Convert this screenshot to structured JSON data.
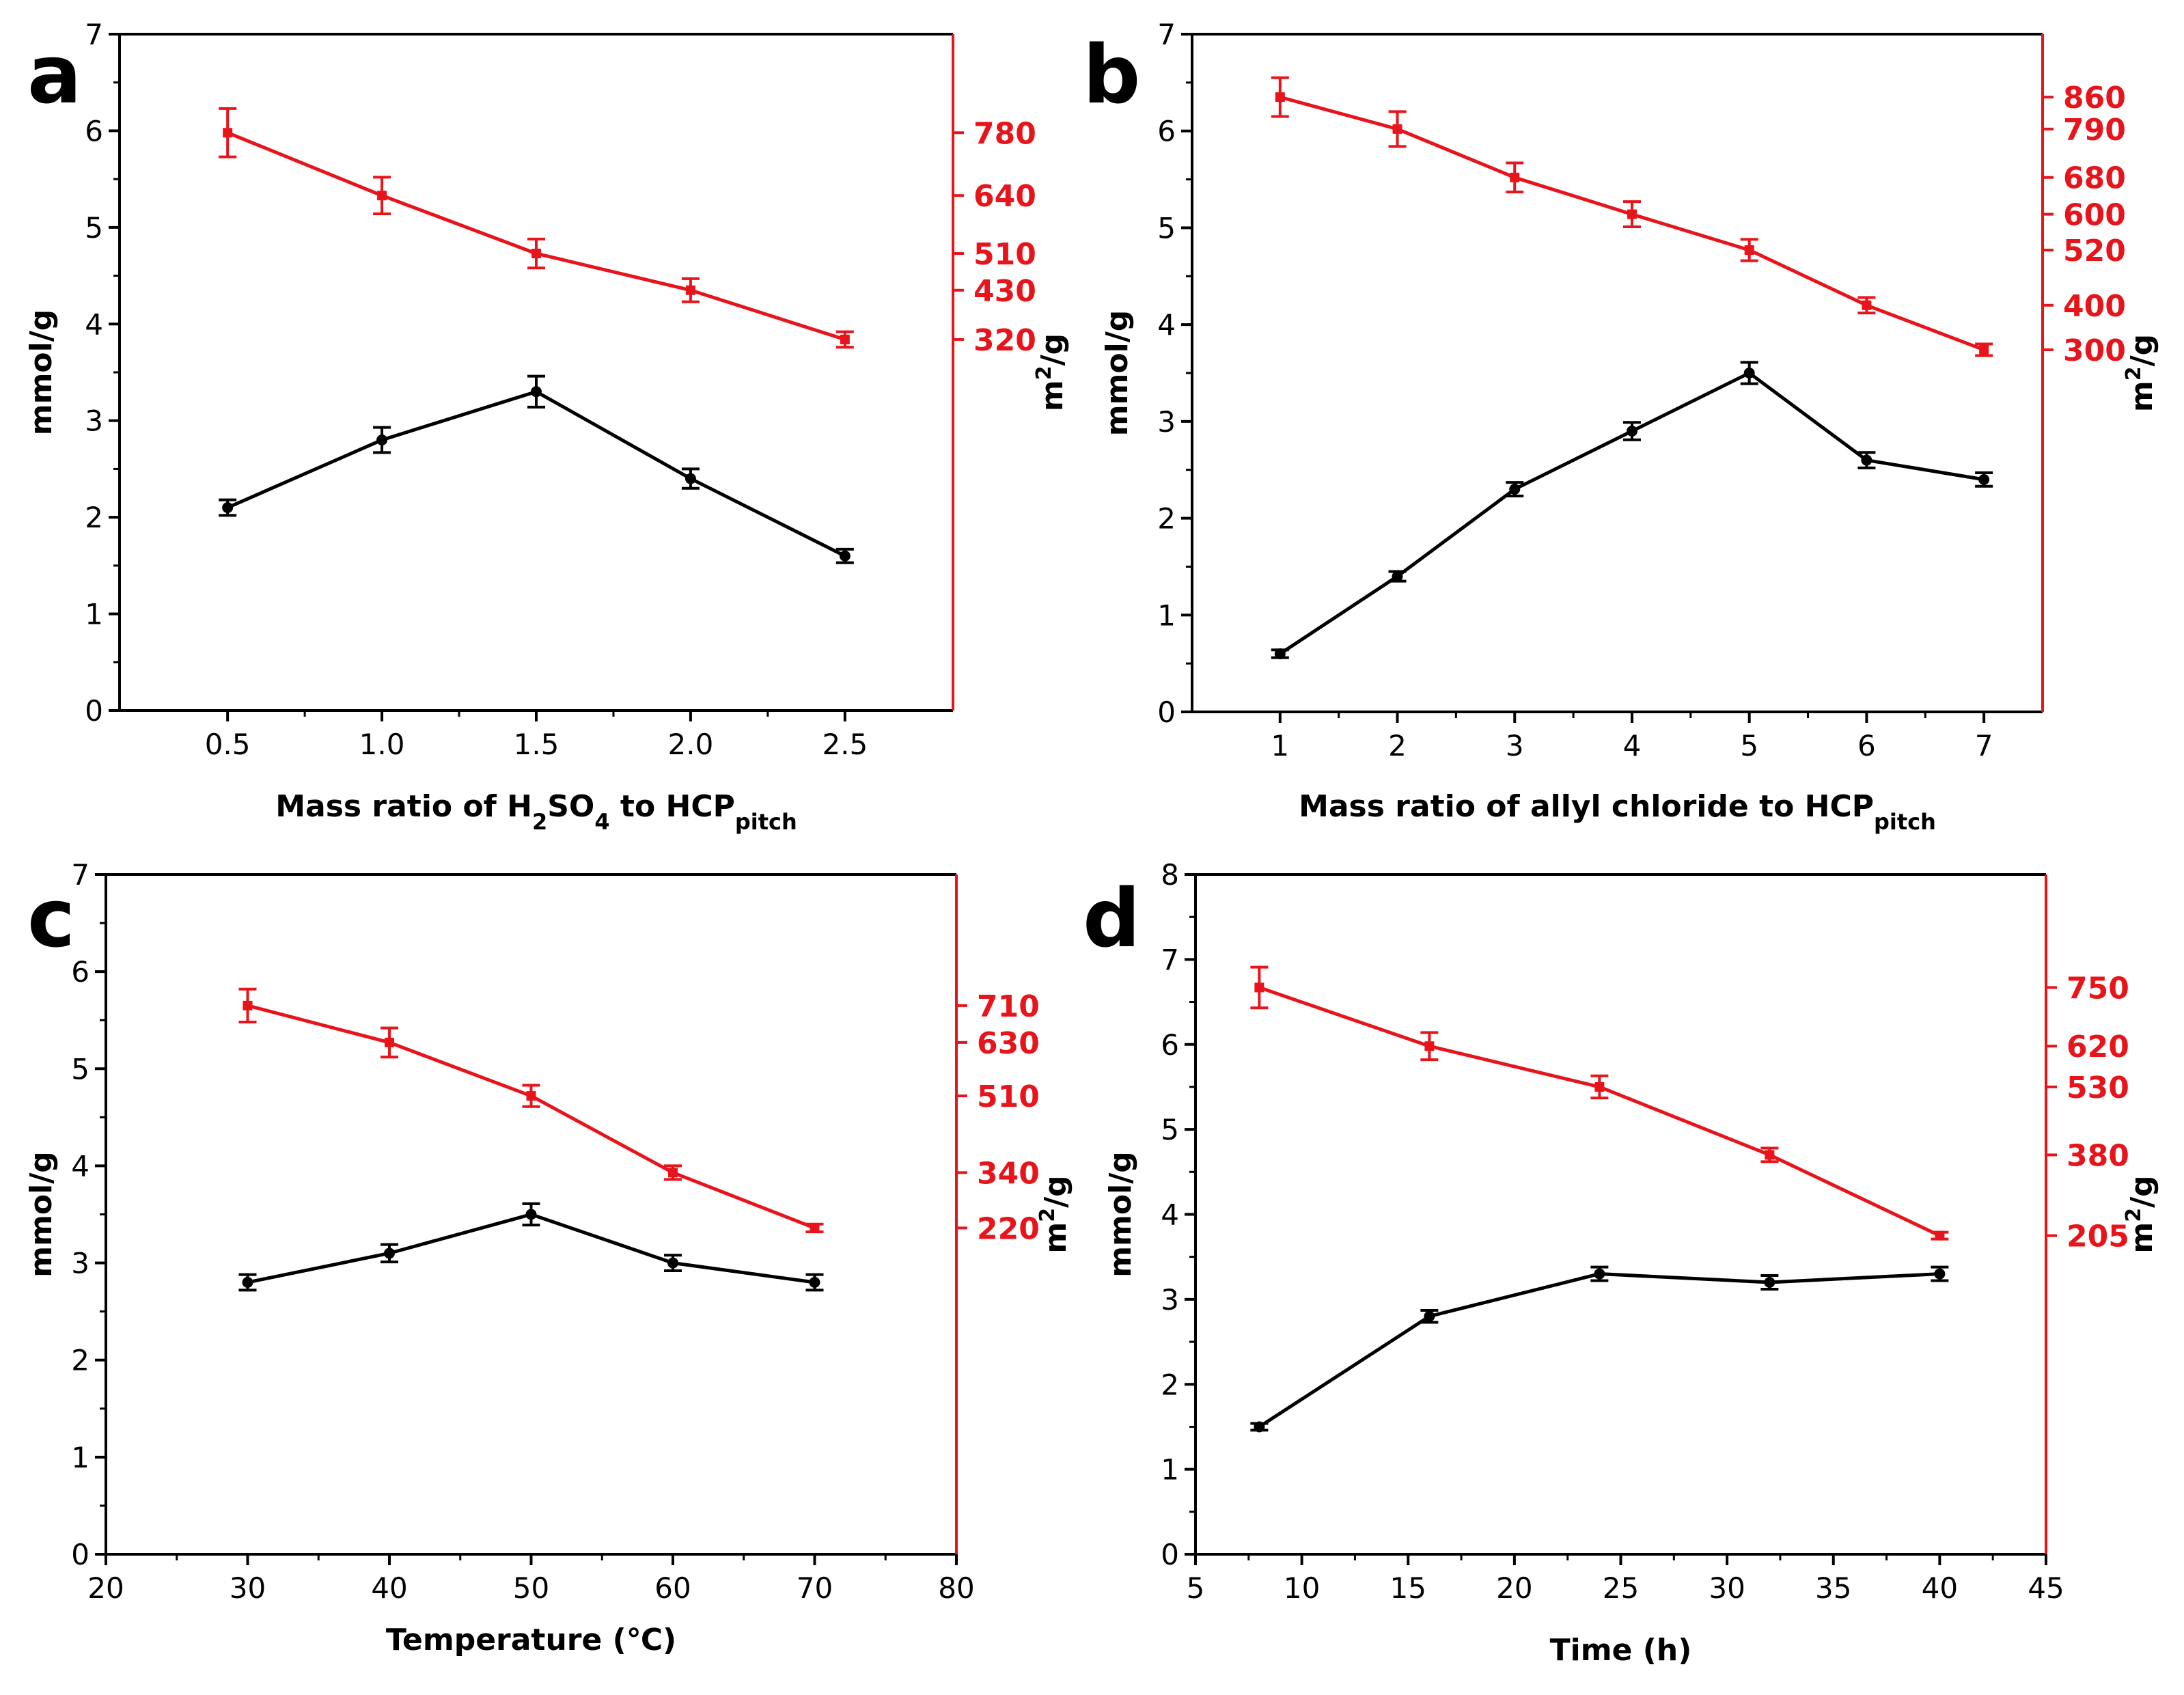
{
  "colors": {
    "left_series": "#000000",
    "right_series": "#e8141b"
  },
  "chart_data": [
    {
      "panel": "a",
      "type": "line",
      "x": [
        0.5,
        1.0,
        1.5,
        2.0,
        2.5
      ],
      "xlim": [
        0.15,
        2.85
      ],
      "xticks": [
        0.5,
        1.0,
        1.5,
        2.0,
        2.5
      ],
      "xtick_labels": [
        "0.5",
        "1.0",
        "1.5",
        "2.0",
        "2.5"
      ],
      "xlabel_parts": [
        {
          "t": "Mass ratio of H",
          "s": ""
        },
        {
          "t": "2",
          "s": "sub"
        },
        {
          "t": "SO",
          "s": ""
        },
        {
          "t": "4",
          "s": "sub"
        },
        {
          "t": " to HCP",
          "s": ""
        },
        {
          "t": "pitch",
          "s": "sub"
        }
      ],
      "ylim": [
        0,
        7
      ],
      "yticks": [
        0,
        1,
        2,
        3,
        4,
        5,
        6,
        7
      ],
      "ytick_labels": [
        "0",
        "1",
        "2",
        "3",
        "4",
        "5",
        "6",
        "7"
      ],
      "ylabel": "mmol/g",
      "y2label": "m",
      "y2label_sup": "2",
      "y2label_tail": "/g",
      "y2_ticks": [
        {
          "label": "780",
          "at": 5.98
        },
        {
          "label": "640",
          "at": 5.33
        },
        {
          "label": "510",
          "at": 4.73
        },
        {
          "label": "430",
          "at": 4.35
        },
        {
          "label": "320",
          "at": 3.84
        }
      ],
      "series": [
        {
          "name": "mmol/g",
          "axis": "left",
          "values": [
            2.1,
            2.8,
            3.3,
            2.4,
            1.6
          ],
          "errors": [
            0.08,
            0.13,
            0.16,
            0.1,
            0.07
          ]
        },
        {
          "name": "m2/g",
          "axis": "right",
          "values": [
            5.98,
            5.33,
            4.73,
            4.35,
            3.84
          ],
          "errors": [
            0.25,
            0.19,
            0.15,
            0.12,
            0.08
          ]
        }
      ]
    },
    {
      "panel": "b",
      "type": "line",
      "x": [
        1,
        2,
        3,
        4,
        5,
        6,
        7
      ],
      "xlim": [
        0.25,
        7.5
      ],
      "xticks": [
        1,
        2,
        3,
        4,
        5,
        6,
        7
      ],
      "xtick_labels": [
        "1",
        "2",
        "3",
        "4",
        "5",
        "6",
        "7"
      ],
      "xlabel_parts": [
        {
          "t": "Mass ratio of allyl chloride to HCP",
          "s": ""
        },
        {
          "t": "pitch",
          "s": "sub"
        }
      ],
      "ylim": [
        0,
        7
      ],
      "yticks": [
        0,
        1,
        2,
        3,
        4,
        5,
        6,
        7
      ],
      "ytick_labels": [
        "0",
        "1",
        "2",
        "3",
        "4",
        "5",
        "6",
        "7"
      ],
      "ylabel": "mmol/g",
      "y2label": "m",
      "y2label_sup": "2",
      "y2label_tail": "/g",
      "y2_ticks": [
        {
          "label": "860",
          "at": 6.35
        },
        {
          "label": "790",
          "at": 6.02
        },
        {
          "label": "680",
          "at": 5.52
        },
        {
          "label": "600",
          "at": 5.14
        },
        {
          "label": "520",
          "at": 4.77
        },
        {
          "label": "400",
          "at": 4.2
        },
        {
          "label": "300",
          "at": 3.74
        }
      ],
      "series": [
        {
          "name": "mmol/g",
          "axis": "left",
          "values": [
            0.6,
            1.4,
            2.3,
            2.9,
            3.5,
            2.6,
            2.4
          ],
          "errors": [
            0.04,
            0.05,
            0.07,
            0.09,
            0.11,
            0.08,
            0.07
          ]
        },
        {
          "name": "m2/g",
          "axis": "right",
          "values": [
            6.35,
            6.02,
            5.52,
            5.14,
            4.77,
            4.2,
            3.74
          ],
          "errors": [
            0.2,
            0.18,
            0.15,
            0.13,
            0.11,
            0.08,
            0.06
          ]
        }
      ]
    },
    {
      "panel": "c",
      "type": "line",
      "x": [
        30,
        40,
        50,
        60,
        70
      ],
      "xlim": [
        20,
        80
      ],
      "xticks": [
        20,
        30,
        40,
        50,
        60,
        70,
        80
      ],
      "xtick_labels": [
        "20",
        "30",
        "40",
        "50",
        "60",
        "70",
        "80"
      ],
      "xlabel_parts": [
        {
          "t": "Temperature (℃)",
          "s": ""
        }
      ],
      "ylim": [
        0,
        7
      ],
      "yticks": [
        0,
        1,
        2,
        3,
        4,
        5,
        6,
        7
      ],
      "ytick_labels": [
        "0",
        "1",
        "2",
        "3",
        "4",
        "5",
        "6",
        "7"
      ],
      "ylabel": "mmol/g",
      "y2label": "m",
      "y2label_sup": "2",
      "y2label_tail": "/g",
      "y2_ticks": [
        {
          "label": "710",
          "at": 5.65
        },
        {
          "label": "630",
          "at": 5.27
        },
        {
          "label": "510",
          "at": 4.72
        },
        {
          "label": "340",
          "at": 3.93
        },
        {
          "label": "220",
          "at": 3.36
        }
      ],
      "series": [
        {
          "name": "mmol/g",
          "axis": "left",
          "values": [
            2.8,
            3.1,
            3.5,
            3.0,
            2.8
          ],
          "errors": [
            0.08,
            0.09,
            0.11,
            0.08,
            0.08
          ]
        },
        {
          "name": "m2/g",
          "axis": "right",
          "values": [
            5.65,
            5.27,
            4.72,
            3.93,
            3.36
          ],
          "errors": [
            0.17,
            0.15,
            0.11,
            0.07,
            0.04
          ]
        }
      ]
    },
    {
      "panel": "d",
      "type": "line",
      "x": [
        8,
        16,
        24,
        32,
        40
      ],
      "xlim": [
        5,
        45
      ],
      "xticks": [
        5,
        10,
        15,
        20,
        25,
        30,
        35,
        40,
        45
      ],
      "xtick_labels": [
        "5",
        "10",
        "15",
        "20",
        "25",
        "30",
        "35",
        "40",
        "45"
      ],
      "xlabel_parts": [
        {
          "t": "Time (h)",
          "s": ""
        }
      ],
      "ylim": [
        0,
        8
      ],
      "yticks": [
        0,
        1,
        2,
        3,
        4,
        5,
        6,
        7,
        8
      ],
      "ytick_labels": [
        "0",
        "1",
        "2",
        "3",
        "4",
        "5",
        "6",
        "7",
        "8"
      ],
      "ylabel": "mmol/g",
      "y2label": "m",
      "y2label_sup": "2",
      "y2label_tail": "/g",
      "y2_ticks": [
        {
          "label": "750",
          "at": 6.67
        },
        {
          "label": "620",
          "at": 5.98
        },
        {
          "label": "530",
          "at": 5.5
        },
        {
          "label": "380",
          "at": 4.7
        },
        {
          "label": "205",
          "at": 3.75
        }
      ],
      "series": [
        {
          "name": "mmol/g",
          "axis": "left",
          "values": [
            1.5,
            2.8,
            3.3,
            3.2,
            3.3
          ],
          "errors": [
            0.04,
            0.07,
            0.08,
            0.08,
            0.08
          ]
        },
        {
          "name": "m2/g",
          "axis": "right",
          "values": [
            6.67,
            5.98,
            5.5,
            4.7,
            3.75
          ],
          "errors": [
            0.24,
            0.16,
            0.13,
            0.08,
            0.04
          ]
        }
      ]
    }
  ]
}
